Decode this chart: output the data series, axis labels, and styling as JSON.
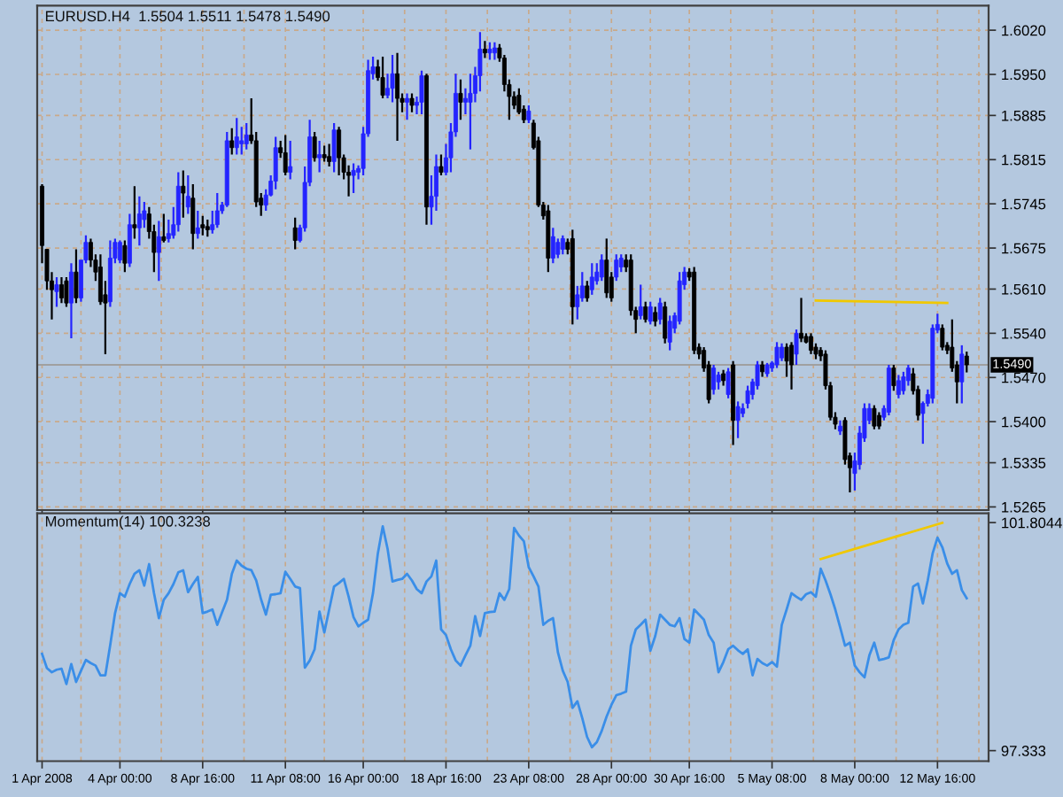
{
  "chart_data": [
    {
      "type": "candlestick",
      "title": "EURUSD.H4  1.5504 1.5511 1.5478 1.5490",
      "ohlc": [
        [
          1.5773,
          1.5776,
          1.5651,
          1.5679
        ],
        [
          1.5673,
          1.5673,
          1.5609,
          1.5623
        ],
        [
          1.5623,
          1.5637,
          1.5562,
          1.5609
        ],
        [
          1.5606,
          1.5629,
          1.5582,
          1.5617
        ],
        [
          1.5617,
          1.5629,
          1.5588,
          1.5596
        ],
        [
          1.5623,
          1.5629,
          1.5582,
          1.5588
        ],
        [
          1.5588,
          1.5651,
          1.5532,
          1.5637
        ],
        [
          1.5637,
          1.5673,
          1.5588,
          1.5596
        ],
        [
          1.5596,
          1.5656,
          1.559,
          1.5656
        ],
        [
          1.5656,
          1.5695,
          1.5651,
          1.5684
        ],
        [
          1.5684,
          1.569,
          1.5645,
          1.5656
        ],
        [
          1.5656,
          1.5665,
          1.5623,
          1.5637
        ],
        [
          1.5645,
          1.5665,
          1.5585,
          1.559
        ],
        [
          1.5601,
          1.5623,
          1.5507,
          1.5588
        ],
        [
          1.559,
          1.5687,
          1.5582,
          1.5659
        ],
        [
          1.5659,
          1.569,
          1.5651,
          1.5684
        ],
        [
          1.5656,
          1.5687,
          1.5651,
          1.5684
        ],
        [
          1.5679,
          1.5687,
          1.5637,
          1.5651
        ],
        [
          1.5651,
          1.5729,
          1.5645,
          1.5712
        ],
        [
          1.5712,
          1.5773,
          1.569,
          1.5707
        ],
        [
          1.5707,
          1.5757,
          1.5679,
          1.5729
        ],
        [
          1.572,
          1.5748,
          1.5707,
          1.5734
        ],
        [
          1.5729,
          1.574,
          1.569,
          1.5701
        ],
        [
          1.5701,
          1.5712,
          1.5637,
          1.5668
        ],
        [
          1.5668,
          1.5718,
          1.5623,
          1.5693
        ],
        [
          1.5693,
          1.5729,
          1.5684,
          1.5687
        ],
        [
          1.569,
          1.572,
          1.5684,
          1.5698
        ],
        [
          1.5695,
          1.574,
          1.569,
          1.5712
        ],
        [
          1.5712,
          1.5795,
          1.5701,
          1.5773
        ],
        [
          1.5773,
          1.5798,
          1.5723,
          1.5762
        ],
        [
          1.574,
          1.579,
          1.5729,
          1.5757
        ],
        [
          1.5754,
          1.5776,
          1.5673,
          1.5698
        ],
        [
          1.5698,
          1.5734,
          1.569,
          1.5707
        ],
        [
          1.5712,
          1.5726,
          1.5695,
          1.5707
        ],
        [
          1.5709,
          1.572,
          1.5693,
          1.5704
        ],
        [
          1.5704,
          1.5734,
          1.5698,
          1.5712
        ],
        [
          1.5712,
          1.5762,
          1.5707,
          1.5734
        ],
        [
          1.5734,
          1.5748,
          1.5729,
          1.5743
        ],
        [
          1.5743,
          1.5859,
          1.574,
          1.5845
        ],
        [
          1.5845,
          1.5865,
          1.5823,
          1.5834
        ],
        [
          1.5834,
          1.5881,
          1.5823,
          1.5851
        ],
        [
          1.584,
          1.5867,
          1.5823,
          1.5845
        ],
        [
          1.584,
          1.5873,
          1.5831,
          1.5854
        ],
        [
          1.5854,
          1.5912,
          1.584,
          1.5845
        ],
        [
          1.5845,
          1.5859,
          1.574,
          1.5748
        ],
        [
          1.5754,
          1.5762,
          1.5726,
          1.5743
        ],
        [
          1.5743,
          1.5768,
          1.5734,
          1.5759
        ],
        [
          1.5759,
          1.579,
          1.5757,
          1.5781
        ],
        [
          1.5781,
          1.5851,
          1.5768,
          1.5834
        ],
        [
          1.5834,
          1.5845,
          1.5818,
          1.5826
        ],
        [
          1.5826,
          1.5854,
          1.579,
          1.5795
        ],
        [
          1.5795,
          1.5845,
          1.5784,
          1.5804
        ],
        [
          1.5707,
          1.5723,
          1.5673,
          1.5687
        ],
        [
          1.5687,
          1.5712,
          1.5684,
          1.5707
        ],
        [
          1.5707,
          1.5804,
          1.5701,
          1.5779
        ],
        [
          1.5779,
          1.5878,
          1.5773,
          1.5851
        ],
        [
          1.5851,
          1.5859,
          1.5812,
          1.5818
        ],
        [
          1.5818,
          1.5845,
          1.5795,
          1.5823
        ],
        [
          1.5823,
          1.5837,
          1.5812,
          1.5818
        ],
        [
          1.582,
          1.584,
          1.5804,
          1.5812
        ],
        [
          1.5812,
          1.5873,
          1.5795,
          1.5862
        ],
        [
          1.5862,
          1.5867,
          1.579,
          1.5818
        ],
        [
          1.5818,
          1.5823,
          1.5784,
          1.5795
        ],
        [
          1.5795,
          1.5806,
          1.5757,
          1.579
        ],
        [
          1.579,
          1.5809,
          1.5762,
          1.5798
        ],
        [
          1.5795,
          1.5806,
          1.5784,
          1.5801
        ],
        [
          1.5801,
          1.5867,
          1.579,
          1.5856
        ],
        [
          1.5856,
          1.5973,
          1.5851,
          1.5956
        ],
        [
          1.5951,
          1.5978,
          1.5942,
          1.5962
        ],
        [
          1.5962,
          1.5973,
          1.594,
          1.5945
        ],
        [
          1.5945,
          1.5978,
          1.5912,
          1.5917
        ],
        [
          1.5917,
          1.5951,
          1.5912,
          1.5928
        ],
        [
          1.5928,
          1.5981,
          1.5906,
          1.5951
        ],
        [
          1.5951,
          1.5984,
          1.5845,
          1.5912
        ],
        [
          1.5912,
          1.592,
          1.589,
          1.5906
        ],
        [
          1.5906,
          1.592,
          1.5878,
          1.5912
        ],
        [
          1.5912,
          1.592,
          1.589,
          1.5901
        ],
        [
          1.5901,
          1.5915,
          1.5887,
          1.5906
        ],
        [
          1.5906,
          1.5956,
          1.5887,
          1.5948
        ],
        [
          1.5948,
          1.5951,
          1.5712,
          1.574
        ],
        [
          1.574,
          1.579,
          1.5712,
          1.5757
        ],
        [
          1.5757,
          1.5823,
          1.5734,
          1.5804
        ],
        [
          1.5804,
          1.5823,
          1.579,
          1.5795
        ],
        [
          1.5795,
          1.584,
          1.579,
          1.5818
        ],
        [
          1.5818,
          1.5873,
          1.5795,
          1.5859
        ],
        [
          1.5859,
          1.5951,
          1.5851,
          1.592
        ],
        [
          1.592,
          1.5942,
          1.5878,
          1.5906
        ],
        [
          1.5906,
          1.5928,
          1.5887,
          1.5912
        ],
        [
          1.5906,
          1.5951,
          1.5831,
          1.592
        ],
        [
          1.592,
          1.5962,
          1.5906,
          1.5948
        ],
        [
          1.5948,
          1.6017,
          1.5923,
          1.599
        ],
        [
          1.599,
          1.6003,
          1.5976,
          1.5984
        ],
        [
          1.5984,
          1.6001,
          1.5973,
          1.599
        ],
        [
          1.5984,
          1.6001,
          1.5973,
          1.5992
        ],
        [
          1.5992,
          1.5998,
          1.597,
          1.5976
        ],
        [
          1.5976,
          1.5981,
          1.5923,
          1.5934
        ],
        [
          1.5934,
          1.5942,
          1.5878,
          1.5915
        ],
        [
          1.5915,
          1.5923,
          1.5895,
          1.5901
        ],
        [
          1.5917,
          1.5928,
          1.5887,
          1.589
        ],
        [
          1.5895,
          1.5901,
          1.5873,
          1.5878
        ],
        [
          1.5878,
          1.5901,
          1.5873,
          1.5892
        ],
        [
          1.5873,
          1.5878,
          1.5831,
          1.5834
        ],
        [
          1.5845,
          1.5851,
          1.574,
          1.5743
        ],
        [
          1.5743,
          1.5748,
          1.572,
          1.5726
        ],
        [
          1.5734,
          1.5743,
          1.5637,
          1.5659
        ],
        [
          1.5659,
          1.5707,
          1.5651,
          1.5693
        ],
        [
          1.5665,
          1.569,
          1.5659,
          1.5684
        ],
        [
          1.5673,
          1.5695,
          1.5665,
          1.569
        ],
        [
          1.5684,
          1.569,
          1.5665,
          1.5673
        ],
        [
          1.569,
          1.5704,
          1.5554,
          1.5582
        ],
        [
          1.5582,
          1.5615,
          1.5562,
          1.5601
        ],
        [
          1.5596,
          1.5637,
          1.559,
          1.5615
        ],
        [
          1.5615,
          1.5623,
          1.559,
          1.5596
        ],
        [
          1.5609,
          1.5651,
          1.5601,
          1.5629
        ],
        [
          1.5623,
          1.5651,
          1.5617,
          1.5637
        ],
        [
          1.5629,
          1.5665,
          1.5623,
          1.5656
        ],
        [
          1.5656,
          1.569,
          1.5596,
          1.5604
        ],
        [
          1.5629,
          1.5637,
          1.559,
          1.5596
        ],
        [
          1.5629,
          1.5665,
          1.5623,
          1.5656
        ],
        [
          1.5645,
          1.5665,
          1.5637,
          1.5659
        ],
        [
          1.5656,
          1.5665,
          1.5637,
          1.5645
        ],
        [
          1.5656,
          1.5665,
          1.5568,
          1.5576
        ],
        [
          1.5576,
          1.5582,
          1.554,
          1.5562
        ],
        [
          1.5568,
          1.5617,
          1.5562,
          1.5582
        ],
        [
          1.5582,
          1.559,
          1.5557,
          1.5562
        ],
        [
          1.5559,
          1.559,
          1.5554,
          1.5582
        ],
        [
          1.5573,
          1.5582,
          1.5551,
          1.5559
        ],
        [
          1.5562,
          1.5596,
          1.5554,
          1.5588
        ],
        [
          1.5582,
          1.559,
          1.5524,
          1.5532
        ],
        [
          1.5526,
          1.5568,
          1.5513,
          1.5559
        ],
        [
          1.5548,
          1.5573,
          1.554,
          1.5568
        ],
        [
          1.5559,
          1.5637,
          1.5554,
          1.5623
        ],
        [
          1.5617,
          1.5645,
          1.5609,
          1.5637
        ],
        [
          1.5637,
          1.5643,
          1.5623,
          1.5629
        ],
        [
          1.5637,
          1.5645,
          1.5507,
          1.5513
        ],
        [
          1.5518,
          1.5524,
          1.5499,
          1.5507
        ],
        [
          1.5513,
          1.5518,
          1.5479,
          1.5485
        ],
        [
          1.549,
          1.5496,
          1.5429,
          1.5435
        ],
        [
          1.5451,
          1.549,
          1.5443,
          1.5485
        ],
        [
          1.5463,
          1.5479,
          1.5451,
          1.5474
        ],
        [
          1.5476,
          1.5482,
          1.5457,
          1.5465
        ],
        [
          1.5443,
          1.5485,
          1.5437,
          1.5479
        ],
        [
          1.549,
          1.5496,
          1.5363,
          1.5402
        ],
        [
          1.5402,
          1.5432,
          1.5374,
          1.5424
        ],
        [
          1.5413,
          1.5429,
          1.5407,
          1.5421
        ],
        [
          1.5429,
          1.5457,
          1.5421,
          1.5449
        ],
        [
          1.5443,
          1.5468,
          1.5435,
          1.5463
        ],
        [
          1.5457,
          1.5496,
          1.5451,
          1.549
        ],
        [
          1.549,
          1.5496,
          1.5471,
          1.5479
        ],
        [
          1.5476,
          1.5493,
          1.5471,
          1.549
        ],
        [
          1.5485,
          1.5496,
          1.5479,
          1.5493
        ],
        [
          1.549,
          1.5526,
          1.5485,
          1.5518
        ],
        [
          1.5501,
          1.5524,
          1.5496,
          1.5518
        ],
        [
          1.5518,
          1.5524,
          1.5471,
          1.5496
        ],
        [
          1.5521,
          1.5526,
          1.5451,
          1.549
        ],
        [
          1.5507,
          1.5546,
          1.549,
          1.554
        ],
        [
          1.554,
          1.5596,
          1.5526,
          1.5532
        ],
        [
          1.5535,
          1.554,
          1.5524,
          1.5526
        ],
        [
          1.5535,
          1.554,
          1.5507,
          1.5513
        ],
        [
          1.5518,
          1.5524,
          1.5499,
          1.5507
        ],
        [
          1.5513,
          1.5518,
          1.5496,
          1.5504
        ],
        [
          1.5507,
          1.5513,
          1.5451,
          1.5457
        ],
        [
          1.5457,
          1.5463,
          1.5402,
          1.5407
        ],
        [
          1.5407,
          1.5415,
          1.5388,
          1.5396
        ],
        [
          1.5385,
          1.5402,
          1.5379,
          1.5393
        ],
        [
          1.5402,
          1.5407,
          1.5332,
          1.534
        ],
        [
          1.5346,
          1.5351,
          1.5288,
          1.5327
        ],
        [
          1.5318,
          1.5351,
          1.5291,
          1.5338
        ],
        [
          1.5332,
          1.5393,
          1.5324,
          1.5382
        ],
        [
          1.5374,
          1.5429,
          1.5368,
          1.5421
        ],
        [
          1.5402,
          1.5429,
          1.5396,
          1.5421
        ],
        [
          1.5421,
          1.5426,
          1.5388,
          1.5393
        ],
        [
          1.541,
          1.5415,
          1.5388,
          1.5393
        ],
        [
          1.5407,
          1.5426,
          1.5402,
          1.5421
        ],
        [
          1.5415,
          1.549,
          1.541,
          1.5485
        ],
        [
          1.5485,
          1.549,
          1.5449,
          1.5457
        ],
        [
          1.5443,
          1.5474,
          1.5437,
          1.5465
        ],
        [
          1.5449,
          1.5479,
          1.5443,
          1.5471
        ],
        [
          1.5465,
          1.549,
          1.5457,
          1.5485
        ],
        [
          1.5476,
          1.5485,
          1.5443,
          1.5449
        ],
        [
          1.5451,
          1.5457,
          1.5402,
          1.541
        ],
        [
          1.5413,
          1.5432,
          1.5365,
          1.5429
        ],
        [
          1.5429,
          1.5451,
          1.5424,
          1.5443
        ],
        [
          1.5437,
          1.5554,
          1.5429,
          1.5548
        ],
        [
          1.5545,
          1.5571,
          1.554,
          1.5554
        ],
        [
          1.5548,
          1.5554,
          1.5513,
          1.5518
        ],
        [
          1.5521,
          1.5526,
          1.5507,
          1.5513
        ],
        [
          1.5518,
          1.5562,
          1.5479,
          1.5485
        ],
        [
          1.549,
          1.5496,
          1.5429,
          1.5463
        ],
        [
          1.5463,
          1.5521,
          1.5429,
          1.5507
        ],
        [
          1.5504,
          1.5511,
          1.5478,
          1.549
        ]
      ],
      "series": [
        {
          "type": "line",
          "color": "#f0c800",
          "values": [
            null,
            null,
            null,
            null,
            null,
            null,
            null,
            null,
            null,
            null,
            null,
            null,
            null,
            null,
            null,
            null,
            null,
            null,
            null,
            null,
            null,
            null,
            null,
            null,
            null,
            null,
            null,
            null,
            null,
            null,
            null,
            null,
            null,
            null,
            null,
            null,
            null,
            null,
            null,
            null,
            null,
            null,
            null,
            null,
            null,
            null,
            null,
            null,
            null,
            null,
            null,
            null,
            null,
            null,
            null,
            null,
            null,
            null,
            null,
            null,
            null,
            null,
            null,
            null,
            null,
            null,
            null,
            null,
            null,
            null,
            null,
            null,
            null,
            null,
            null,
            null,
            null,
            null,
            null,
            null,
            null,
            null,
            null,
            null,
            null,
            null,
            null,
            null,
            null,
            null,
            null,
            null,
            null,
            null,
            null,
            null,
            null,
            null,
            null,
            null,
            null,
            null,
            null,
            null,
            null,
            null,
            null,
            null,
            null,
            null,
            null,
            null,
            null,
            null,
            null,
            null,
            null,
            null,
            null,
            null,
            null,
            null,
            null,
            null,
            null,
            null,
            null,
            null,
            null,
            null,
            null,
            null,
            null,
            null,
            null,
            null,
            null,
            null,
            null,
            null,
            null,
            null,
            null,
            null,
            null,
            null,
            null,
            null,
            null,
            null,
            null,
            null,
            null,
            null,
            null,
            null,
            null,
            null,
            null,
            1.5592,
            null,
            null,
            null,
            null,
            null,
            null,
            null,
            null,
            null,
            null,
            null,
            null,
            null,
            null,
            null,
            null,
            null,
            null,
            null,
            null,
            null,
            null,
            null,
            null,
            null,
            null,
            1.5588,
            null,
            null,
            null,
            null
          ]
        }
      ],
      "ylim": [
        1.526,
        1.6059
      ],
      "yticks": [
        {
          "value": 1.602,
          "label": "1.6020"
        },
        {
          "value": 1.595,
          "label": "1.5950"
        },
        1.5885,
        1.5815,
        1.5745,
        1.5675,
        {
          "value": 1.561,
          "label": "1.5610"
        },
        {
          "value": 1.554,
          "label": "1.5540"
        },
        {
          "value": 1.547,
          "label": "1.5470"
        },
        {
          "value": 1.54,
          "label": "1.5400"
        },
        1.5335,
        1.5265
      ],
      "ref_lines": [
        {
          "axis": "y",
          "value": 1.549,
          "label": "1.5490",
          "color": "#a0a0a0"
        }
      ],
      "grid": true,
      "tick_labels": "y"
    },
    {
      "type": "line",
      "title": "Momentum(14) 100.3238",
      "categories": [
        "1 Apr 2008",
        null,
        null,
        null,
        null,
        null,
        null,
        null,
        null,
        null,
        null,
        null,
        null,
        null,
        null,
        null,
        "4 Apr 00:00",
        null,
        null,
        null,
        null,
        null,
        null,
        null,
        null,
        null,
        null,
        null,
        null,
        null,
        null,
        null,
        null,
        "8 Apr 16:00",
        null,
        null,
        null,
        null,
        null,
        null,
        null,
        null,
        null,
        null,
        null,
        null,
        null,
        null,
        null,
        null,
        "11 Apr 08:00",
        null,
        null,
        null,
        null,
        null,
        null,
        null,
        null,
        null,
        null,
        null,
        null,
        null,
        null,
        null,
        "16 Apr 00:00",
        null,
        null,
        null,
        null,
        null,
        null,
        null,
        null,
        null,
        null,
        null,
        null,
        null,
        null,
        null,
        null,
        "18 Apr 16:00",
        null,
        null,
        null,
        null,
        null,
        null,
        null,
        null,
        null,
        null,
        null,
        null,
        null,
        null,
        null,
        null,
        "23 Apr 08:00",
        null,
        null,
        null,
        null,
        null,
        null,
        null,
        null,
        null,
        null,
        null,
        null,
        null,
        null,
        null,
        null,
        "28 Apr 00:00",
        null,
        null,
        null,
        null,
        null,
        null,
        null,
        null,
        null,
        null,
        null,
        null,
        null,
        null,
        null,
        "30 Apr 16:00",
        null,
        null,
        null,
        null,
        null,
        null,
        null,
        null,
        null,
        null,
        null,
        null,
        null,
        null,
        null,
        null,
        "5 May 08:00",
        null,
        null,
        null,
        null,
        null,
        null,
        null,
        null,
        null,
        null,
        null,
        null,
        null,
        null,
        null,
        null,
        "8 May 00:00",
        null,
        null,
        null,
        null,
        null,
        null,
        null,
        null,
        null,
        null,
        null,
        null,
        null,
        null,
        null,
        null,
        "12 May 16:00",
        null,
        null,
        null,
        null,
        null,
        null
      ],
      "series": [
        {
          "color": "#3a8ee8",
          "values": [
            99.23,
            98.95,
            98.87,
            98.92,
            98.94,
            98.64,
            99.03,
            98.68,
            98.9,
            99.11,
            99.05,
            99.0,
            98.81,
            98.81,
            99.4,
            100.03,
            100.42,
            100.35,
            100.6,
            100.8,
            100.87,
            100.57,
            100.99,
            100.42,
            99.93,
            100.29,
            100.42,
            100.6,
            100.83,
            100.87,
            100.44,
            100.6,
            100.74,
            100.03,
            100.06,
            100.1,
            99.8,
            100.05,
            100.29,
            100.8,
            101.06,
            100.96,
            100.9,
            100.87,
            100.67,
            100.3,
            100.0,
            100.39,
            100.4,
            100.42,
            100.84,
            100.7,
            100.55,
            100.52,
            98.96,
            99.1,
            99.32,
            100.06,
            99.65,
            100.1,
            100.55,
            100.62,
            100.7,
            100.35,
            99.95,
            99.77,
            99.84,
            99.9,
            100.42,
            101.2,
            101.73,
            101.29,
            100.65,
            100.68,
            100.7,
            100.8,
            100.67,
            100.5,
            100.42,
            100.65,
            100.75,
            101.06,
            99.71,
            99.6,
            99.32,
            99.1,
            99.0,
            99.2,
            99.39,
            99.97,
            99.58,
            100.03,
            100.05,
            100.06,
            100.42,
            100.29,
            100.5,
            101.7,
            101.55,
            101.44,
            100.93,
            100.75,
            100.55,
            99.8,
            99.88,
            99.93,
            99.26,
            98.9,
            98.68,
            98.17,
            98.3,
            97.97,
            97.6,
            97.4,
            97.5,
            97.72,
            98.0,
            98.23,
            98.42,
            98.45,
            98.49,
            99.39,
            99.71,
            99.8,
            99.9,
            99.29,
            99.58,
            100.0,
            99.9,
            99.8,
            99.77,
            99.93,
            99.52,
            99.45,
            100.1,
            100.0,
            99.9,
            99.6,
            99.45,
            98.87,
            99.07,
            99.32,
            99.39,
            99.3,
            99.23,
            99.32,
            98.81,
            99.13,
            99.05,
            99.0,
            99.07,
            98.98,
            99.8,
            100.1,
            100.42,
            100.35,
            100.29,
            100.4,
            100.44,
            100.35,
            100.9,
            100.67,
            100.4,
            100.1,
            99.75,
            99.39,
            99.45,
            99.0,
            98.87,
            98.77,
            99.2,
            99.45,
            99.11,
            99.13,
            99.16,
            99.5,
            99.71,
            99.8,
            99.84,
            100.55,
            100.61,
            100.22,
            100.67,
            101.2,
            101.51,
            101.32,
            101.0,
            100.8,
            100.87,
            100.48,
            100.32
          ]
        },
        {
          "color": "#f0c800",
          "values": [
            null,
            null,
            null,
            null,
            null,
            null,
            null,
            null,
            null,
            null,
            null,
            null,
            null,
            null,
            null,
            null,
            null,
            null,
            null,
            null,
            null,
            null,
            null,
            null,
            null,
            null,
            null,
            null,
            null,
            null,
            null,
            null,
            null,
            null,
            null,
            null,
            null,
            null,
            null,
            null,
            null,
            null,
            null,
            null,
            null,
            null,
            null,
            null,
            null,
            null,
            null,
            null,
            null,
            null,
            null,
            null,
            null,
            null,
            null,
            null,
            null,
            null,
            null,
            null,
            null,
            null,
            null,
            null,
            null,
            null,
            null,
            null,
            null,
            null,
            null,
            null,
            null,
            null,
            null,
            null,
            null,
            null,
            null,
            null,
            null,
            null,
            null,
            null,
            null,
            null,
            null,
            null,
            null,
            null,
            null,
            null,
            null,
            null,
            null,
            null,
            null,
            null,
            null,
            null,
            null,
            null,
            null,
            null,
            null,
            null,
            null,
            null,
            null,
            null,
            null,
            null,
            null,
            null,
            null,
            null,
            null,
            null,
            null,
            null,
            null,
            null,
            null,
            null,
            null,
            null,
            null,
            null,
            null,
            null,
            null,
            null,
            null,
            null,
            null,
            null,
            null,
            null,
            null,
            null,
            null,
            null,
            null,
            null,
            null,
            null,
            null,
            null,
            null,
            null,
            null,
            null,
            null,
            null,
            null,
            null,
            101.09,
            null,
            null,
            null,
            null,
            null,
            null,
            null,
            null,
            null,
            null,
            null,
            null,
            null,
            null,
            null,
            null,
            null,
            null,
            null,
            null,
            null,
            null,
            null,
            null,
            101.8,
            null,
            null,
            null,
            null,
            null
          ]
        }
      ],
      "ylim": [
        97.127,
        101.987
      ],
      "yticks": [
        101.8044,
        97.333
      ],
      "grid": "x"
    }
  ]
}
